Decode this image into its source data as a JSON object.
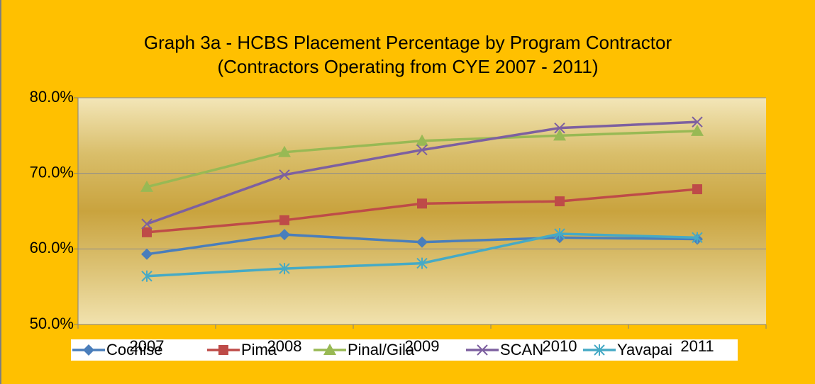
{
  "chart_data": {
    "type": "line",
    "title": "Graph 3a - HCBS Placement Percentage by Program Contractor",
    "subtitle": "(Contractors Operating from CYE 2007 - 2011)",
    "categories": [
      "2007",
      "2008",
      "2009",
      "2010",
      "2011"
    ],
    "series": [
      {
        "name": "Cochise",
        "color": "#4A7EBB",
        "marker": "diamond",
        "values": [
          59.3,
          61.9,
          60.9,
          61.5,
          61.3
        ]
      },
      {
        "name": "Pima",
        "color": "#BE4B48",
        "marker": "square",
        "values": [
          62.2,
          63.8,
          66.0,
          66.3,
          67.9
        ]
      },
      {
        "name": "Pinal/Gila",
        "color": "#98B954",
        "marker": "triangle",
        "values": [
          68.2,
          72.8,
          74.3,
          75.0,
          75.6
        ]
      },
      {
        "name": "SCAN",
        "color": "#7D60A0",
        "marker": "x",
        "values": [
          63.3,
          69.8,
          73.1,
          76.0,
          76.8
        ]
      },
      {
        "name": "Yavapai",
        "color": "#46AAC5",
        "marker": "asterisk",
        "values": [
          56.4,
          57.4,
          58.1,
          62.0,
          61.5
        ]
      }
    ],
    "ylim": [
      50,
      80
    ],
    "yticks": [
      {
        "value": 50,
        "label": "50.0%"
      },
      {
        "value": 60,
        "label": "60.0%"
      },
      {
        "value": 70,
        "label": "70.0%"
      },
      {
        "value": 80,
        "label": "80.0%"
      }
    ],
    "grid": true,
    "legend": "bottom"
  }
}
